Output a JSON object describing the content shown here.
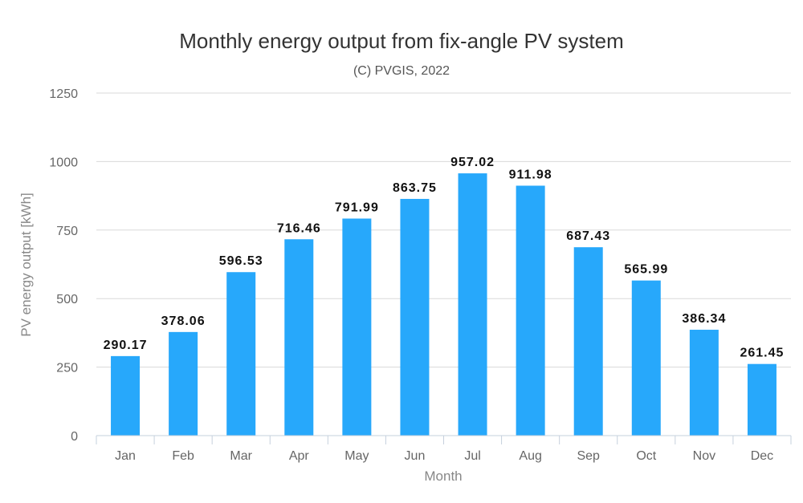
{
  "chart_data": {
    "type": "bar",
    "title": "Monthly energy output from fix-angle PV system",
    "subtitle": "(C) PVGIS, 2022",
    "xlabel": "Month",
    "ylabel": "PV energy output [kWh]",
    "categories": [
      "Jan",
      "Feb",
      "Mar",
      "Apr",
      "May",
      "Jun",
      "Jul",
      "Aug",
      "Sep",
      "Oct",
      "Nov",
      "Dec"
    ],
    "values": [
      290.17,
      378.06,
      596.53,
      716.46,
      791.99,
      863.75,
      957.02,
      911.98,
      687.43,
      565.99,
      386.34,
      261.45
    ],
    "data_labels": [
      "290.17",
      "378.06",
      "596.53",
      "716.46",
      "791.99",
      "863.75",
      "957.02",
      "911.98",
      "687.43",
      "565.99",
      "386.34",
      "261.45"
    ],
    "ylim": [
      0,
      1250
    ],
    "yticks": [
      0,
      250,
      500,
      750,
      1000,
      1250
    ],
    "grid": true,
    "legend": "none",
    "bar_color": "#27a8fb"
  }
}
